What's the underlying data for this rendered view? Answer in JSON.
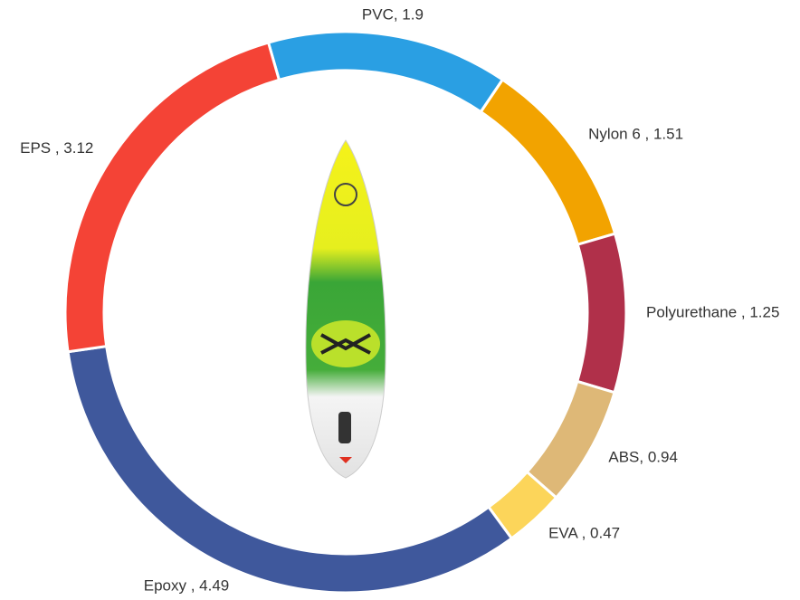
{
  "chart_data": {
    "type": "donut",
    "value_labels": [
      "PVC, 1.9",
      "Nylon 6 , 1.51",
      "Polyurethane , 1.25",
      "ABS, 0.94",
      "EVA , 0.47",
      "Epoxy , 4.49",
      "EPS , 3.12"
    ],
    "values": [
      1.9,
      1.51,
      1.25,
      0.94,
      0.47,
      4.49,
      3.12
    ],
    "colors": [
      "#2a9fe3",
      "#f2a300",
      "#b0304a",
      "#deb877",
      "#fcd55a",
      "#3f589c",
      "#f44336"
    ]
  }
}
